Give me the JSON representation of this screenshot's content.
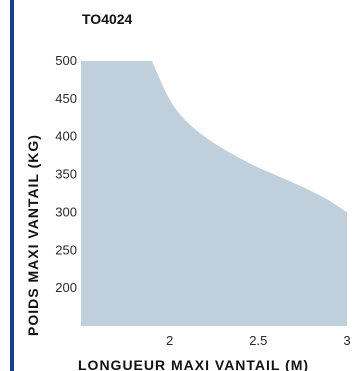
{
  "chart_data": {
    "type": "area",
    "title": "TO4024",
    "xlabel": "LONGUEUR MAXI VANTAIL (M)",
    "ylabel": "POIDS MAXI VANTAIL (KG)",
    "xlim": [
      1.5,
      3.0
    ],
    "ylim": [
      150,
      500
    ],
    "x_ticks": [
      "2",
      "2.5",
      "3"
    ],
    "x_tick_values": [
      2,
      2.5,
      3
    ],
    "y_ticks": [
      "200",
      "250",
      "300",
      "350",
      "400",
      "450",
      "500"
    ],
    "y_tick_values": [
      200,
      250,
      300,
      350,
      400,
      450,
      500
    ],
    "grid": false,
    "series": [
      {
        "x": [
          1.5,
          1.9,
          2.0,
          2.1,
          2.2,
          2.3,
          2.4,
          2.5,
          2.6,
          2.7,
          2.8,
          2.9,
          3.0
        ],
        "y": [
          500,
          500,
          446,
          418,
          399,
          384,
          371,
          359,
          349,
          339,
          328,
          316,
          300
        ]
      }
    ],
    "colors": {
      "area": "#bfcfdb",
      "accent": "#1a3f8f"
    }
  }
}
